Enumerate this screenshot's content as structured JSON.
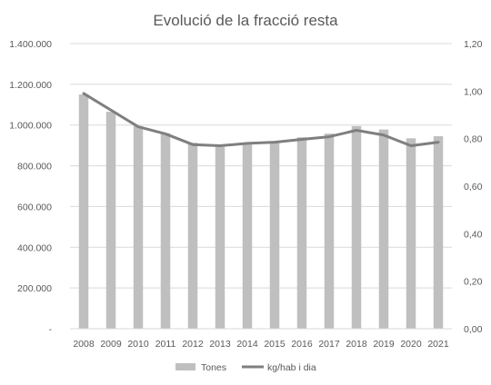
{
  "chart_data": {
    "type": "bar",
    "title": "Evolució de la fracció resta",
    "categories": [
      "2008",
      "2009",
      "2010",
      "2011",
      "2012",
      "2013",
      "2014",
      "2015",
      "2016",
      "2017",
      "2018",
      "2019",
      "2020",
      "2021"
    ],
    "series": [
      {
        "name": "Tones",
        "type": "bar",
        "axis": "left",
        "color": "#bfbfbf",
        "values": [
          1150000,
          1065000,
          995000,
          960000,
          913000,
          893000,
          905000,
          920000,
          940000,
          958000,
          995000,
          978000,
          935000,
          945000
        ]
      },
      {
        "name": "kg/hab i dia",
        "type": "line",
        "axis": "right",
        "color": "#7f7f7f",
        "values": [
          0.99,
          0.92,
          0.85,
          0.82,
          0.775,
          0.77,
          0.78,
          0.785,
          0.797,
          0.808,
          0.835,
          0.815,
          0.77,
          0.785
        ]
      }
    ],
    "y_left": {
      "min": 0,
      "max": 1400000,
      "ticks": [
        0,
        200000,
        400000,
        600000,
        800000,
        1000000,
        1200000,
        1400000
      ],
      "tick_labels": [
        "-",
        "200.000",
        "400.000",
        "600.000",
        "800.000",
        "1.000.000",
        "1.200.000",
        "1.400.000"
      ]
    },
    "y_right": {
      "min": 0,
      "max": 1.2,
      "ticks": [
        0,
        0.2,
        0.4,
        0.6,
        0.8,
        1.0,
        1.2
      ],
      "tick_labels": [
        "0,00",
        "0,20",
        "0,40",
        "0,60",
        "0,80",
        "1,00",
        "1,20"
      ]
    },
    "grid": true,
    "legend": "bottom"
  }
}
